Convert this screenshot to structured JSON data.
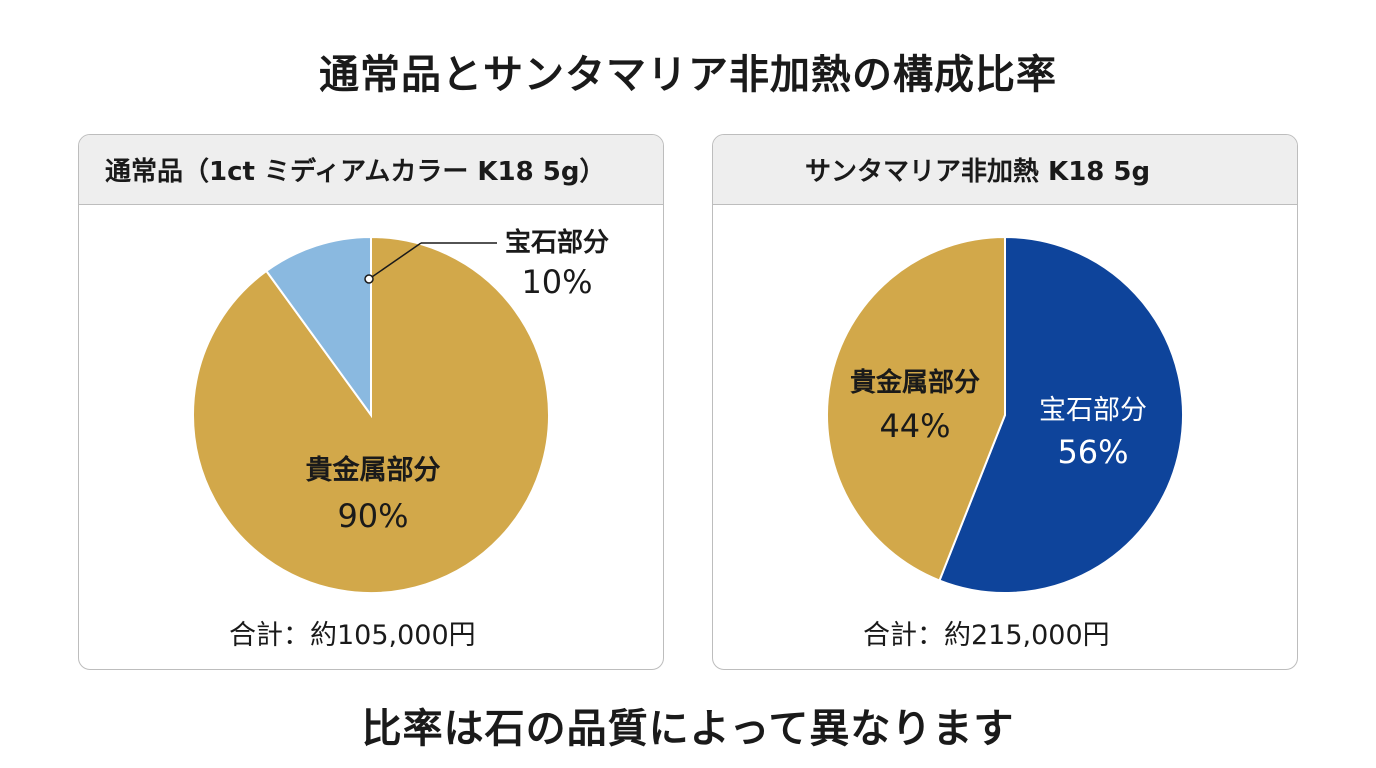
{
  "title": "通常品とサンタマリア非加熱の構成比率",
  "footer": "比率は石の品質によって異なります",
  "colors": {
    "gold": "#d2a84a",
    "light_blue": "#8ab9e0",
    "navy": "#0e449b"
  },
  "chart_data": [
    {
      "type": "pie",
      "title": "通常品（1ct ミディアムカラー K18 5g）",
      "total_label": "合計：約105,000円",
      "slices": [
        {
          "label": "貴金属部分",
          "value": 90,
          "value_label": "90%",
          "color": "#d2a84a"
        },
        {
          "label": "宝石部分",
          "value": 10,
          "value_label": "10%",
          "color": "#8ab9e0"
        }
      ]
    },
    {
      "type": "pie",
      "title": "サンタマリア非加熱 K18 5g",
      "total_label": "合計：約215,000円",
      "slices": [
        {
          "label": "宝石部分",
          "value": 56,
          "value_label": "56%",
          "color": "#0e449b"
        },
        {
          "label": "貴金属部分",
          "value": 44,
          "value_label": "44%",
          "color": "#d2a84a"
        }
      ]
    }
  ]
}
